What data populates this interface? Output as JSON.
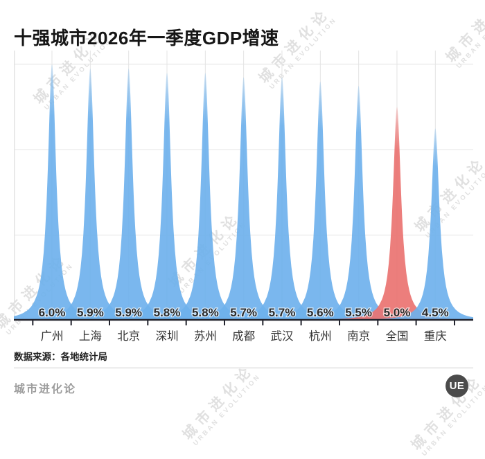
{
  "title": "十强城市2026年一季度GDP增速",
  "source_note": "数据来源：各地统计局",
  "footer": {
    "brand": "城市进化论",
    "logo_text": "UE"
  },
  "watermark": {
    "line1": "城市进化论",
    "line2": "URBAN EVOLUTION"
  },
  "chart_data": {
    "type": "area",
    "title": "十强城市2026年一季度GDP增速",
    "categories": [
      "广州",
      "上海",
      "北京",
      "深圳",
      "苏州",
      "成都",
      "武汉",
      "杭州",
      "南京",
      "全国",
      "重庆"
    ],
    "values": [
      6.0,
      5.9,
      5.9,
      5.8,
      5.8,
      5.7,
      5.7,
      5.6,
      5.5,
      5.0,
      4.5
    ],
    "value_labels": [
      "6.0%",
      "5.9%",
      "5.9%",
      "5.8%",
      "5.8%",
      "5.7%",
      "5.7%",
      "5.6%",
      "5.5%",
      "5.0%",
      "4.5%"
    ],
    "unit": "%",
    "highlight_category": "全国",
    "highlight_index": 9,
    "xlabel": "",
    "ylabel": "",
    "ylim": [
      0,
      6.32
    ],
    "gridline_values": [
      2,
      4,
      6
    ],
    "grid": true,
    "legend_position": "none",
    "colors": {
      "series": "#6EB1EC",
      "highlight": "#EA7371",
      "grid": "#e3e3e3",
      "axis": "#23242e",
      "value_label": "#2b2b2b",
      "category_label": "#333333"
    }
  }
}
